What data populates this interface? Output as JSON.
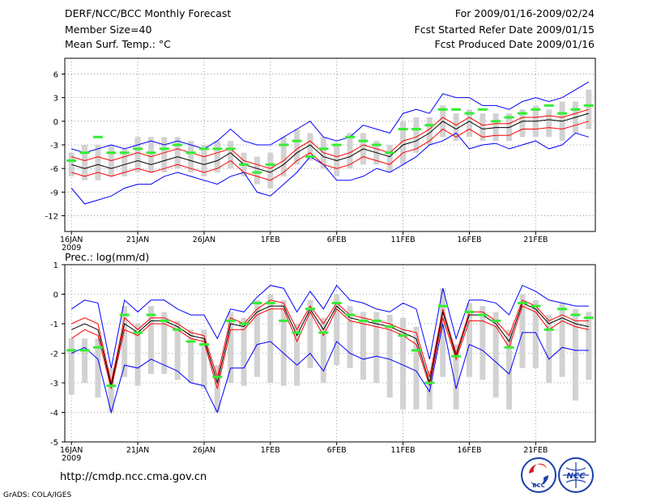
{
  "header": {
    "title": "DERF/NCC/BCC Monthly Forecast",
    "member_size": "Member Size=40",
    "temp_label": "Mean Surf. Temp.: °C",
    "date_range": "For 2009/01/16-2009/02/24",
    "started": "Fcst Started Refer Date 2009/01/15",
    "produced": "Fcst Produced Date 2009/01/16",
    "prec_label": "Prec.: log(mm/d)"
  },
  "footer": {
    "url": "http://cmdp.ncc.cma.gov.cn",
    "grads": "GrADS: COLA/IGES",
    "logo_bcc": "BCC",
    "logo_ncc": "NCC"
  },
  "colors": {
    "max_min": "#0000ff",
    "quartile": "#ff0000",
    "mean": "#000000",
    "obs": "#33ee33",
    "box": "#d2d2d2",
    "grid": "#888888"
  },
  "chart_data": [
    {
      "type": "line",
      "title": "Mean Surf. Temp.: °C",
      "x": [
        1,
        2,
        3,
        4,
        5,
        6,
        7,
        8,
        9,
        10,
        11,
        12,
        13,
        14,
        15,
        16,
        17,
        18,
        19,
        20,
        21,
        22,
        23,
        24,
        25,
        26,
        27,
        28,
        29,
        30,
        31,
        32,
        33,
        34,
        35,
        36,
        37,
        38,
        39,
        40
      ],
      "x_ticks": [
        1,
        6,
        11,
        16,
        21,
        26,
        31,
        36
      ],
      "x_tick_labels": [
        "16JAN",
        "21JAN",
        "26JAN",
        "1FEB",
        "6FEB",
        "11FEB",
        "16FEB",
        "21FEB"
      ],
      "x_sublabel": "2009",
      "ylim": [
        -14,
        8
      ],
      "y_ticks": [
        -12,
        -9,
        -6,
        -3,
        0,
        3,
        6
      ],
      "series": [
        {
          "name": "max",
          "values": [
            -8.5,
            -10.5,
            -10,
            -9.5,
            -8.5,
            -8,
            -8,
            -7,
            -6.5,
            -7,
            -7.5,
            -8,
            -7,
            -6.5,
            -9,
            -9.5,
            -8,
            -6.5,
            -4.5,
            -5.5,
            -7.5,
            -7.5,
            -7,
            -6,
            -6.5,
            -5.5,
            -4.5,
            -3,
            -2.5,
            -1.5,
            -3.5,
            -3,
            -2.8,
            -3.5,
            -3,
            -2.5,
            -3.5,
            -3,
            -1.5,
            -2
          ]
        },
        {
          "name": "p75",
          "values": [
            -4.5,
            -5,
            -4.5,
            -5,
            -4.5,
            -4,
            -4.5,
            -4,
            -3.5,
            -4,
            -4.5,
            -4,
            -3.5,
            -5,
            -5.5,
            -6,
            -5,
            -3.5,
            -2.5,
            -4,
            -4.5,
            -4,
            -3,
            -3.5,
            -4,
            -2.5,
            -2,
            -1,
            0.5,
            -0.5,
            0.5,
            -0.5,
            -0.3,
            -0.3,
            0.5,
            0.5,
            0.7,
            0.5,
            1,
            1.5
          ]
        },
        {
          "name": "mean",
          "values": [
            -5.5,
            -6,
            -5.5,
            -6,
            -5.5,
            -5,
            -5.5,
            -5,
            -4.5,
            -5,
            -5.5,
            -5,
            -4,
            -5.5,
            -6,
            -6.5,
            -5.5,
            -4,
            -3,
            -4.5,
            -5,
            -4.5,
            -3.5,
            -4,
            -4.5,
            -3,
            -2.5,
            -1.5,
            0,
            -1,
            0,
            -1,
            -0.8,
            -0.8,
            0,
            0,
            0.2,
            0,
            0.5,
            1
          ]
        },
        {
          "name": "p25",
          "values": [
            -6.5,
            -7,
            -6.5,
            -7,
            -6.5,
            -6,
            -6.5,
            -6,
            -5.5,
            -6,
            -6.5,
            -6,
            -5,
            -6.5,
            -7,
            -7.5,
            -6.5,
            -5,
            -4,
            -5.5,
            -6,
            -5.5,
            -4.5,
            -5,
            -5.5,
            -4,
            -3.5,
            -2.5,
            -1,
            -2,
            -1,
            -2,
            -1.8,
            -1.8,
            -1,
            -1,
            -0.8,
            -1,
            -0.5,
            0
          ]
        },
        {
          "name": "min",
          "values": [
            -3.5,
            -4,
            -3.5,
            -3,
            -3.5,
            -3,
            -2.5,
            -3,
            -2.5,
            -3,
            -3.5,
            -2.5,
            -1,
            -2.5,
            -3,
            -3,
            -2,
            -1,
            0,
            -2,
            -2.5,
            -2,
            -0.5,
            -1,
            -1.5,
            1,
            1.5,
            1,
            3.5,
            3,
            3,
            2,
            2,
            1.5,
            2.5,
            3,
            2.5,
            3,
            4,
            5
          ]
        },
        {
          "name": "obs",
          "values": [
            -5,
            -4,
            -2,
            -4,
            -4,
            -3.5,
            -4,
            -3.5,
            -3,
            -4,
            -3.5,
            -3.5,
            -3.5,
            -5.5,
            -6.5,
            -5.5,
            -3,
            -2.5,
            -4.5,
            -3.5,
            -3,
            -2,
            -2.5,
            -3,
            -4,
            -1,
            -1,
            -0.5,
            1.5,
            1.5,
            1,
            1.5,
            0,
            0.5,
            1,
            1.5,
            2,
            1,
            1.5,
            2
          ]
        },
        {
          "name": "box_hi",
          "values": [
            -4,
            -3,
            -3,
            -3,
            -3.5,
            -2,
            -2,
            -2,
            -2,
            -2.5,
            -3,
            -2.5,
            -2.5,
            -4,
            -4.5,
            -4,
            -2,
            -1,
            -1.5,
            -2,
            -3,
            -1.5,
            -1.5,
            -2.5,
            -3,
            0,
            0.5,
            0.5,
            2,
            1,
            1.5,
            1,
            1,
            1,
            1.5,
            2,
            1.5,
            2.5,
            2.5,
            4
          ]
        },
        {
          "name": "box_lo",
          "values": [
            -7,
            -7.5,
            -7.5,
            -7,
            -7,
            -6.5,
            -6.5,
            -6.5,
            -6,
            -6.5,
            -7,
            -6.5,
            -6,
            -7,
            -8,
            -8.5,
            -7,
            -5.5,
            -5,
            -6,
            -7,
            -6,
            -5.5,
            -5.5,
            -6.5,
            -5.5,
            -4,
            -3,
            -2,
            -2.5,
            -2,
            -2.5,
            -2.5,
            -2.5,
            -2,
            -2,
            -2,
            -2.5,
            -1.5,
            -1
          ]
        }
      ]
    },
    {
      "type": "line",
      "title": "Prec.: log(mm/d)",
      "x": [
        1,
        2,
        3,
        4,
        5,
        6,
        7,
        8,
        9,
        10,
        11,
        12,
        13,
        14,
        15,
        16,
        17,
        18,
        19,
        20,
        21,
        22,
        23,
        24,
        25,
        26,
        27,
        28,
        29,
        30,
        31,
        32,
        33,
        34,
        35,
        36,
        37,
        38,
        39,
        40
      ],
      "x_ticks": [
        1,
        6,
        11,
        16,
        21,
        26,
        31,
        36
      ],
      "x_tick_labels": [
        "16JAN",
        "21JAN",
        "26JAN",
        "1FEB",
        "6FEB",
        "11FEB",
        "16FEB",
        "21FEB"
      ],
      "x_sublabel": "2009",
      "ylim": [
        -5,
        1
      ],
      "y_ticks": [
        -5,
        -4,
        -3,
        -2,
        -1,
        0,
        1
      ],
      "series": [
        {
          "name": "max",
          "values": [
            -0.5,
            -0.2,
            -0.3,
            -2.5,
            -0.2,
            -0.6,
            -0.2,
            -0.2,
            -0.5,
            -0.7,
            -0.7,
            -1.5,
            -0.5,
            -0.6,
            -0.1,
            0.3,
            0.2,
            -0.6,
            0.1,
            -0.5,
            0.3,
            -0.2,
            -0.3,
            -0.5,
            -0.6,
            -0.3,
            -0.5,
            -2.2,
            0.2,
            -1.5,
            -0.2,
            -0.2,
            -0.3,
            -0.7,
            0.3,
            0.1,
            -0.2,
            -0.3,
            -0.4,
            -0.4
          ]
        },
        {
          "name": "p75",
          "values": [
            -1.0,
            -0.8,
            -1.0,
            -3.0,
            -0.8,
            -1.2,
            -0.8,
            -0.8,
            -1.0,
            -1.3,
            -1.4,
            -2.8,
            -0.8,
            -1.0,
            -0.5,
            -0.2,
            -0.3,
            -1.2,
            -0.4,
            -1.0,
            -0.3,
            -0.7,
            -0.8,
            -0.9,
            -1.0,
            -1.2,
            -1.3,
            -2.8,
            -0.5,
            -2.0,
            -0.6,
            -0.6,
            -0.9,
            -1.4,
            -0.2,
            -0.4,
            -0.9,
            -0.7,
            -0.9,
            -0.9
          ]
        },
        {
          "name": "mean",
          "values": [
            -1.2,
            -1.0,
            -1.2,
            -3.1,
            -1.0,
            -1.3,
            -0.9,
            -0.9,
            -1.1,
            -1.4,
            -1.5,
            -3.0,
            -1.0,
            -1.1,
            -0.6,
            -0.4,
            -0.4,
            -1.4,
            -0.5,
            -1.2,
            -0.4,
            -0.8,
            -0.9,
            -1.0,
            -1.1,
            -1.3,
            -1.5,
            -3.0,
            -0.6,
            -2.1,
            -0.7,
            -0.7,
            -1.0,
            -1.6,
            -0.3,
            -0.5,
            -1.0,
            -0.8,
            -1.0,
            -1.1
          ]
        },
        {
          "name": "p25",
          "values": [
            -1.5,
            -1.2,
            -1.4,
            -3.2,
            -1.2,
            -1.4,
            -1.0,
            -1.0,
            -1.2,
            -1.5,
            -1.6,
            -3.2,
            -1.2,
            -1.2,
            -0.7,
            -0.5,
            -0.5,
            -1.6,
            -0.6,
            -1.4,
            -0.5,
            -0.9,
            -1.0,
            -1.1,
            -1.2,
            -1.4,
            -1.7,
            -3.1,
            -0.8,
            -2.2,
            -0.9,
            -0.9,
            -1.1,
            -1.8,
            -0.4,
            -0.6,
            -1.2,
            -0.9,
            -1.1,
            -1.2
          ]
        },
        {
          "name": "min",
          "values": [
            -2.0,
            -1.8,
            -2.2,
            -4.0,
            -2.4,
            -2.5,
            -2.2,
            -2.4,
            -2.6,
            -3.0,
            -3.1,
            -4.0,
            -2.5,
            -2.5,
            -1.7,
            -1.6,
            -2.0,
            -2.4,
            -2.0,
            -2.6,
            -1.6,
            -2.0,
            -2.2,
            -2.1,
            -2.2,
            -2.4,
            -2.6,
            -3.3,
            -1.0,
            -3.2,
            -1.7,
            -1.9,
            -2.3,
            -2.7,
            -1.3,
            -1.3,
            -2.2,
            -1.8,
            -1.9,
            -1.9
          ]
        },
        {
          "name": "obs",
          "values": [
            -1.9,
            -1.9,
            -1.8,
            -3.1,
            -0.7,
            -1.3,
            -0.7,
            -0.9,
            -1.2,
            -1.6,
            -1.7,
            -2.8,
            -0.9,
            -1.0,
            -0.3,
            -0.3,
            -0.9,
            -1.3,
            -0.5,
            -1.3,
            -0.3,
            -0.7,
            -0.9,
            -0.9,
            -1.1,
            -1.4,
            -1.9,
            -3.0,
            -0.4,
            -2.1,
            -0.6,
            -0.7,
            -0.9,
            -1.8,
            -0.3,
            -0.4,
            -1.2,
            -0.5,
            -0.7,
            -0.8
          ]
        },
        {
          "name": "box_hi",
          "values": [
            -1.5,
            -1.5,
            -1.5,
            -2.5,
            -0.4,
            -1.0,
            -0.4,
            -0.6,
            -0.9,
            -1.2,
            -1.2,
            -2.4,
            -0.6,
            -0.8,
            -0.2,
            0.0,
            -0.2,
            -1.0,
            -0.2,
            -0.8,
            0.0,
            -0.4,
            -0.6,
            -0.6,
            -0.7,
            -0.8,
            -1.1,
            -2.6,
            0.2,
            -1.7,
            -0.3,
            -0.4,
            -0.6,
            -1.2,
            0.0,
            -0.2,
            -0.7,
            -0.3,
            -0.5,
            -0.6
          ]
        },
        {
          "name": "box_lo",
          "values": [
            -3.4,
            -3.0,
            -3.5,
            -4.0,
            -2.8,
            -3.1,
            -2.7,
            -2.7,
            -2.9,
            -3.0,
            -3.2,
            -4.0,
            -3.0,
            -3.1,
            -2.8,
            -3.0,
            -3.1,
            -3.1,
            -2.5,
            -3.0,
            -2.4,
            -2.5,
            -2.9,
            -3.0,
            -3.5,
            -3.9,
            -3.9,
            -3.9,
            -2.8,
            -3.9,
            -2.8,
            -2.9,
            -3.5,
            -3.9,
            -2.5,
            -2.5,
            -3.0,
            -2.8,
            -3.6,
            -2.9
          ]
        }
      ]
    }
  ]
}
